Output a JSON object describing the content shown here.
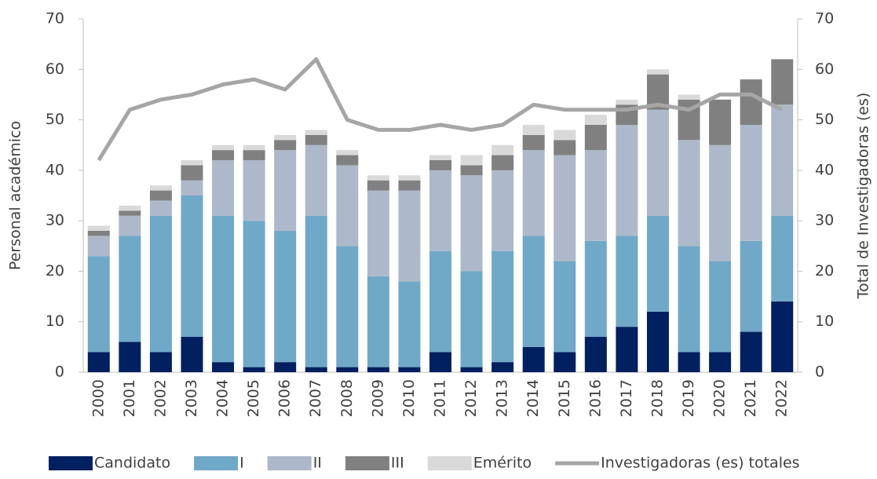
{
  "chart_data": {
    "type": "bar",
    "stacked": true,
    "ylabel": "Personal académico",
    "y2label": "Total de Investigadoras (es)",
    "categories": [
      "2000",
      "2001",
      "2002",
      "2003",
      "2004",
      "2005",
      "2006",
      "2007",
      "2008",
      "2009",
      "2010",
      "2011",
      "2012",
      "2013",
      "2014",
      "2015",
      "2016",
      "2017",
      "2018",
      "2019",
      "2020",
      "2021",
      "2022"
    ],
    "series": [
      {
        "name": "Candidato",
        "color": "#002060",
        "values": [
          4,
          6,
          4,
          7,
          2,
          1,
          2,
          1,
          1,
          1,
          1,
          4,
          1,
          2,
          5,
          4,
          7,
          9,
          12,
          4,
          4,
          8,
          14
        ]
      },
      {
        "name": "I",
        "color": "#70a8c8",
        "values": [
          19,
          21,
          27,
          28,
          29,
          29,
          26,
          30,
          24,
          18,
          17,
          20,
          19,
          22,
          22,
          18,
          19,
          18,
          19,
          21,
          18,
          18,
          17
        ]
      },
      {
        "name": "II",
        "color": "#adb9ca",
        "values": [
          4,
          4,
          3,
          3,
          11,
          12,
          16,
          14,
          16,
          17,
          18,
          16,
          19,
          16,
          17,
          21,
          18,
          22,
          21,
          21,
          23,
          23,
          22
        ]
      },
      {
        "name": "III",
        "color": "#808080",
        "values": [
          1,
          1,
          2,
          3,
          2,
          2,
          2,
          2,
          2,
          2,
          2,
          2,
          2,
          3,
          3,
          3,
          5,
          4,
          7,
          8,
          9,
          9,
          9
        ]
      },
      {
        "name": "Emérito",
        "color": "#d9d9d9",
        "values": [
          1,
          1,
          1,
          1,
          1,
          1,
          1,
          1,
          1,
          1,
          1,
          1,
          2,
          2,
          2,
          2,
          2,
          1,
          1,
          1,
          0,
          0,
          0
        ]
      },
      {
        "name": "Investigadoras (es) totales",
        "color": "#a6a6a6",
        "type": "line",
        "axis": "y2",
        "values": [
          42,
          52,
          54,
          55,
          57,
          58,
          56,
          62,
          50,
          48,
          48,
          49,
          48,
          49,
          53,
          52,
          52,
          52,
          53,
          52,
          55,
          55,
          52
        ]
      }
    ],
    "ylim": [
      0,
      70
    ],
    "yticks": [
      0,
      10,
      20,
      30,
      40,
      50,
      60,
      70
    ],
    "y2lim": [
      0,
      70
    ],
    "y2ticks": [
      0,
      10,
      20,
      30,
      40,
      50,
      60,
      70
    ],
    "legend": "bottom"
  }
}
